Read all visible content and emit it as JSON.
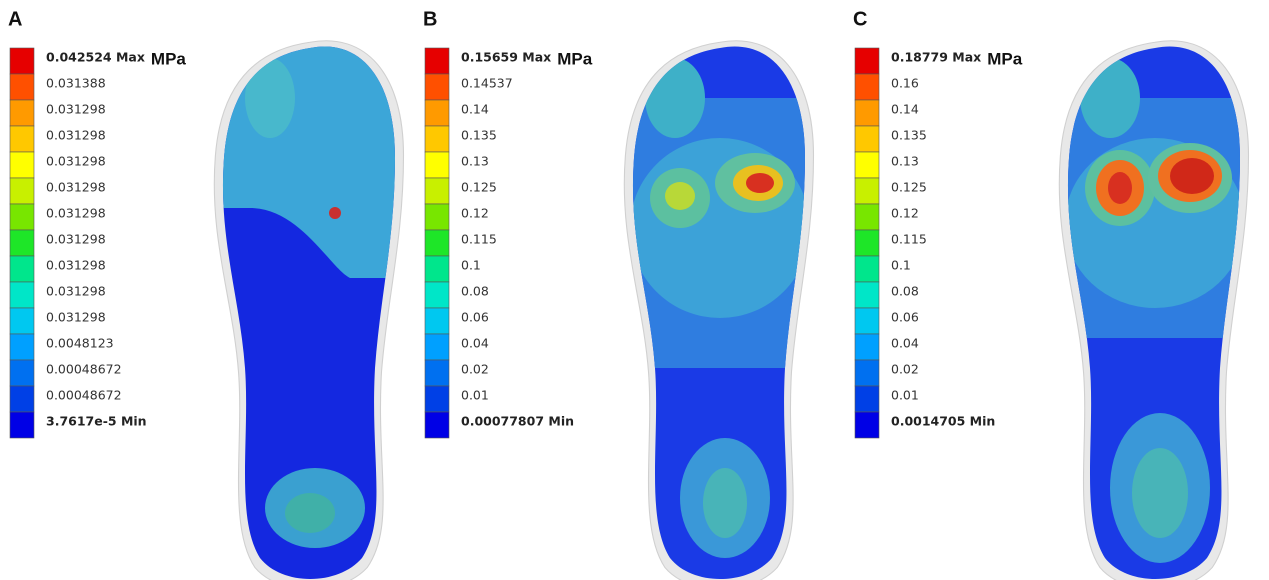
{
  "legend_colors": [
    "#e60000",
    "#ff5000",
    "#ff9a00",
    "#ffc800",
    "#ffff00",
    "#c8f000",
    "#78e600",
    "#1ee628",
    "#00e68c",
    "#00e6c8",
    "#00c8f0",
    "#00a0ff",
    "#0070f0",
    "#0040e6",
    "#0000e6"
  ],
  "panels": [
    {
      "label": "A",
      "unit": "MPa",
      "legend": [
        "0.042524 Max",
        "0.031388",
        "0.031298",
        "0.031298",
        "0.031298",
        "0.031298",
        "0.031298",
        "0.031298",
        "0.031298",
        "0.031298",
        "0.031298",
        "0.0048123",
        "0.00048672",
        "0.00048672",
        "3.7617e-5 Min"
      ]
    },
    {
      "label": "B",
      "unit": "MPa",
      "legend": [
        "0.15659 Max",
        "0.14537",
        "0.14",
        "0.135",
        "0.13",
        "0.125",
        "0.12",
        "0.115",
        "0.1",
        "0.08",
        "0.06",
        "0.04",
        "0.02",
        "0.01",
        "0.00077807 Min"
      ]
    },
    {
      "label": "C",
      "unit": "MPa",
      "legend": [
        "0.18779 Max",
        "0.16",
        "0.14",
        "0.135",
        "0.13",
        "0.125",
        "0.12",
        "0.115",
        "0.1",
        "0.08",
        "0.06",
        "0.04",
        "0.02",
        "0.01",
        "0.0014705 Min"
      ]
    }
  ]
}
